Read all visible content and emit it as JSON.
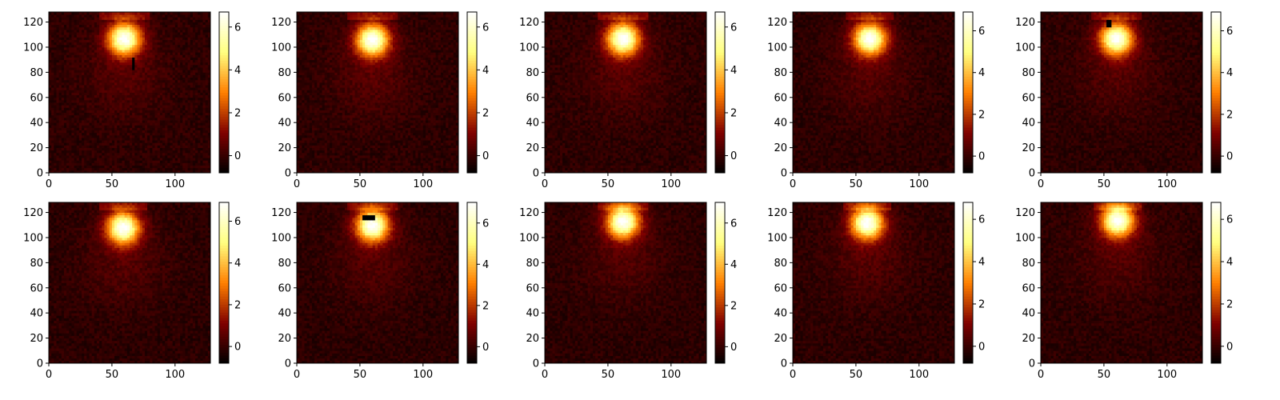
{
  "colors": {
    "colormap": "afmhot",
    "background": "#ffffff",
    "axis": "#000000"
  },
  "chart_data": [
    {
      "type": "heatmap",
      "panel": 1,
      "xlim": [
        0,
        128
      ],
      "ylim": [
        0,
        128
      ],
      "x_ticks": [
        0,
        50,
        100
      ],
      "y_ticks": [
        0,
        20,
        40,
        60,
        80,
        100,
        120
      ],
      "colorbar_ticks": [
        0,
        2,
        4,
        6
      ],
      "clim": [
        -0.8,
        6.7
      ],
      "features": {
        "hotspot_center": [
          60,
          107
        ],
        "hotspot_peak": 6.6,
        "streak": {
          "x": 67,
          "y_from": 82,
          "y_to": 92
        }
      }
    },
    {
      "type": "heatmap",
      "panel": 2,
      "xlim": [
        0,
        128
      ],
      "ylim": [
        0,
        128
      ],
      "x_ticks": [
        0,
        50,
        100
      ],
      "y_ticks": [
        0,
        20,
        40,
        60,
        80,
        100,
        120
      ],
      "colorbar_ticks": [
        0,
        2,
        4,
        6
      ],
      "clim": [
        -0.8,
        6.7
      ],
      "features": {
        "hotspot_center": [
          60,
          106
        ],
        "hotspot_peak": 6.6
      }
    },
    {
      "type": "heatmap",
      "panel": 3,
      "xlim": [
        0,
        128
      ],
      "ylim": [
        0,
        128
      ],
      "x_ticks": [
        0,
        50,
        100
      ],
      "y_ticks": [
        0,
        20,
        40,
        60,
        80,
        100,
        120
      ],
      "colorbar_ticks": [
        0,
        2,
        4,
        6
      ],
      "clim": [
        -0.8,
        6.7
      ],
      "features": {
        "hotspot_center": [
          62,
          107
        ],
        "hotspot_peak": 6.6
      }
    },
    {
      "type": "heatmap",
      "panel": 4,
      "xlim": [
        0,
        128
      ],
      "ylim": [
        0,
        128
      ],
      "x_ticks": [
        0,
        50,
        100
      ],
      "y_ticks": [
        0,
        20,
        40,
        60,
        80,
        100,
        120
      ],
      "colorbar_ticks": [
        0,
        2,
        4,
        6
      ],
      "clim": [
        -0.8,
        6.9
      ],
      "features": {
        "hotspot_center": [
          61,
          107
        ],
        "hotspot_peak": 6.7
      }
    },
    {
      "type": "heatmap",
      "panel": 5,
      "xlim": [
        0,
        128
      ],
      "ylim": [
        0,
        128
      ],
      "x_ticks": [
        0,
        50,
        100
      ],
      "y_ticks": [
        0,
        20,
        40,
        60,
        80,
        100,
        120
      ],
      "colorbar_ticks": [
        0,
        2,
        4,
        6
      ],
      "clim": [
        -0.8,
        6.9
      ],
      "features": {
        "hotspot_center": [
          60,
          107
        ],
        "hotspot_peak": 6.7,
        "streak": {
          "x": 54,
          "y_from": 117,
          "y_to": 122
        }
      }
    },
    {
      "type": "heatmap",
      "panel": 6,
      "xlim": [
        0,
        128
      ],
      "ylim": [
        0,
        128
      ],
      "x_ticks": [
        0,
        50,
        100
      ],
      "y_ticks": [
        0,
        20,
        40,
        60,
        80,
        100,
        120
      ],
      "colorbar_ticks": [
        0,
        2,
        4,
        6
      ],
      "clim": [
        -0.8,
        6.9
      ],
      "features": {
        "hotspot_center": [
          59,
          108
        ],
        "hotspot_peak": 6.8
      }
    },
    {
      "type": "heatmap",
      "panel": 7,
      "xlim": [
        0,
        128
      ],
      "ylim": [
        0,
        128
      ],
      "x_ticks": [
        0,
        50,
        100
      ],
      "y_ticks": [
        0,
        20,
        40,
        60,
        80,
        100,
        120
      ],
      "colorbar_ticks": [
        0,
        2,
        4,
        6
      ],
      "clim": [
        -0.8,
        7.0
      ],
      "features": {
        "hotspot_center": [
          60,
          110
        ],
        "hotspot_peak": 6.9,
        "bar": {
          "x_from": 52,
          "x_to": 62,
          "y": 116
        }
      }
    },
    {
      "type": "heatmap",
      "panel": 8,
      "xlim": [
        0,
        128
      ],
      "ylim": [
        0,
        128
      ],
      "x_ticks": [
        0,
        50,
        100
      ],
      "y_ticks": [
        0,
        20,
        40,
        60,
        80,
        100,
        120
      ],
      "colorbar_ticks": [
        0,
        2,
        4,
        6
      ],
      "clim": [
        -0.8,
        7.0
      ],
      "features": {
        "hotspot_center": [
          62,
          113
        ],
        "hotspot_peak": 6.9
      }
    },
    {
      "type": "heatmap",
      "panel": 9,
      "xlim": [
        0,
        128
      ],
      "ylim": [
        0,
        128
      ],
      "x_ticks": [
        0,
        50,
        100
      ],
      "y_ticks": [
        0,
        20,
        40,
        60,
        80,
        100,
        120
      ],
      "colorbar_ticks": [
        0,
        2,
        4,
        6
      ],
      "clim": [
        -0.8,
        6.8
      ],
      "features": {
        "hotspot_center": [
          59,
          112
        ],
        "hotspot_peak": 6.7
      }
    },
    {
      "type": "heatmap",
      "panel": 10,
      "xlim": [
        0,
        128
      ],
      "ylim": [
        0,
        128
      ],
      "x_ticks": [
        0,
        50,
        100
      ],
      "y_ticks": [
        0,
        20,
        40,
        60,
        80,
        100,
        120
      ],
      "colorbar_ticks": [
        0,
        2,
        4,
        6
      ],
      "clim": [
        -0.8,
        6.8
      ],
      "features": {
        "hotspot_center": [
          61,
          114
        ],
        "hotspot_peak": 6.7
      }
    }
  ]
}
